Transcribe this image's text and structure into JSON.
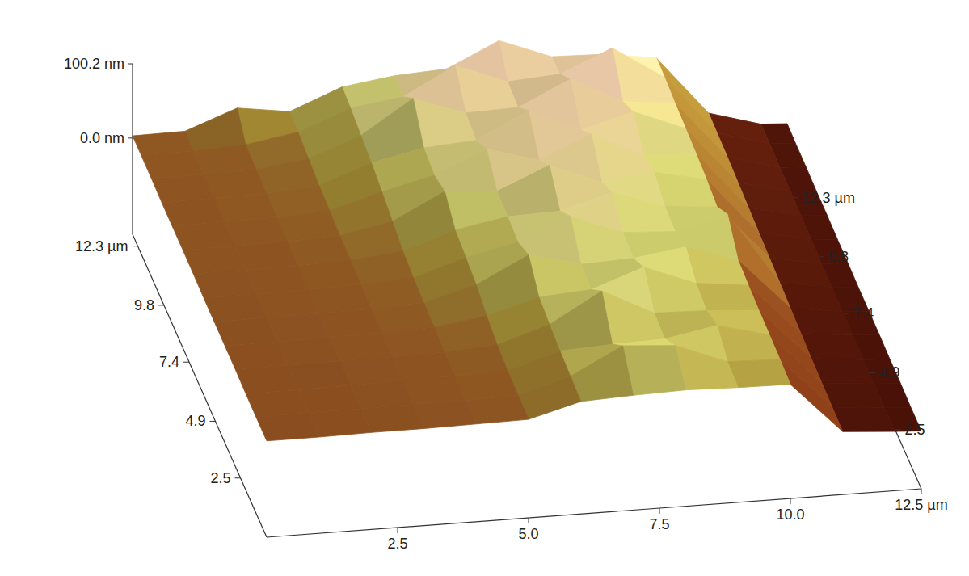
{
  "chart_data": {
    "type": "surface",
    "x": [
      0,
      1,
      2,
      3,
      4,
      5,
      6,
      7,
      8,
      9,
      10,
      11,
      12,
      12.5
    ],
    "y": [
      0,
      1,
      2,
      3,
      4,
      5,
      6,
      7,
      8,
      9,
      10,
      11,
      12,
      12.8
    ],
    "z": [
      [
        0,
        0,
        1,
        1,
        2,
        3,
        22,
        25,
        27,
        25,
        24,
        -45,
        -50,
        -52
      ],
      [
        0,
        1,
        1,
        2,
        2,
        4,
        24,
        60,
        55,
        28,
        26,
        -44,
        -50,
        -52
      ],
      [
        0,
        0,
        1,
        2,
        3,
        5,
        26,
        30,
        32,
        45,
        27,
        -43,
        -49,
        -51
      ],
      [
        1,
        1,
        2,
        2,
        3,
        8,
        30,
        70,
        35,
        33,
        28,
        -42,
        -49,
        -51
      ],
      [
        1,
        1,
        2,
        3,
        5,
        15,
        35,
        40,
        65,
        38,
        30,
        -40,
        -48,
        -50
      ],
      [
        1,
        2,
        2,
        3,
        6,
        25,
        60,
        42,
        45,
        55,
        32,
        -38,
        -48,
        -50
      ],
      [
        1,
        2,
        2,
        4,
        8,
        30,
        45,
        75,
        48,
        44,
        62,
        -36,
        -47,
        -50
      ],
      [
        2,
        2,
        3,
        5,
        12,
        35,
        48,
        50,
        70,
        46,
        40,
        -34,
        -47,
        -49
      ],
      [
        2,
        2,
        3,
        6,
        20,
        55,
        50,
        80,
        52,
        60,
        45,
        -32,
        -46,
        -49
      ],
      [
        2,
        3,
        4,
        8,
        28,
        45,
        75,
        55,
        85,
        50,
        48,
        -30,
        -46,
        -48
      ],
      [
        2,
        3,
        4,
        10,
        35,
        50,
        55,
        90,
        58,
        78,
        50,
        -28,
        -45,
        -48
      ],
      [
        3,
        3,
        5,
        14,
        40,
        85,
        60,
        62,
        95,
        60,
        52,
        -26,
        -45,
        -47
      ],
      [
        3,
        3,
        6,
        18,
        45,
        55,
        92,
        65,
        70,
        100,
        55,
        -25,
        -44,
        -47
      ],
      [
        3,
        4,
        30,
        20,
        48,
        58,
        62,
        95,
        68,
        66,
        56,
        -24,
        -44,
        -46
      ]
    ],
    "xlim": [
      0,
      12.5
    ],
    "xticks": [
      2.5,
      {
        "value": 5,
        "label": "5.0"
      },
      7.5,
      {
        "value": 10,
        "label": "10.0"
      },
      {
        "value": 12.5,
        "label": "12.5 µm"
      }
    ],
    "ylim": [
      0,
      12.8
    ],
    "yticks": [
      2.5,
      4.9,
      7.4,
      9.8,
      {
        "value": 12.3,
        "label": "12.3 µm"
      }
    ],
    "zlim": [
      -130,
      100.2
    ],
    "zticks": [
      {
        "value": 0,
        "label": "0.0 nm"
      },
      {
        "value": 100.2,
        "label": "100.2 nm"
      }
    ]
  }
}
